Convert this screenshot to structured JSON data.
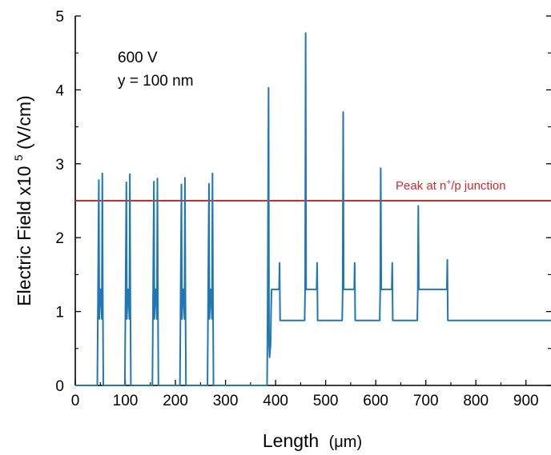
{
  "chart_data": {
    "type": "line",
    "title": "",
    "xlabel": "Length",
    "xlabel_unit": "(μm)",
    "ylabel_prefix": "Electric Field x10",
    "ylabel_exp": "5",
    "ylabel_unit": " (V/cm)",
    "xlim": [
      0,
      950
    ],
    "ylim": [
      0,
      5
    ],
    "xticks": [
      0,
      100,
      200,
      300,
      400,
      500,
      600,
      700,
      800,
      900
    ],
    "yticks": [
      0,
      1,
      2,
      3,
      4,
      5
    ],
    "grid": false,
    "legend": "none",
    "annotations": {
      "voltage": "600 V",
      "position": "y = 100 nm"
    },
    "reference_line": {
      "y": 2.5,
      "label_prefix": "Peak at n",
      "label_sup": "+",
      "label_suffix": "/p junction",
      "color": "#d42a2a"
    },
    "series": [
      {
        "color": "#1f77b4",
        "x": [
          0,
          44,
          45,
          47,
          48,
          50,
          51,
          53,
          54,
          55,
          56,
          57,
          99,
          100,
          102,
          103,
          105,
          106,
          108,
          109,
          110,
          111,
          112,
          154,
          155,
          157,
          158,
          160,
          161,
          163,
          164,
          165,
          166,
          167,
          209,
          210,
          212,
          213,
          215,
          216,
          218,
          219,
          220,
          221,
          222,
          264,
          265,
          267,
          268,
          270,
          271,
          273,
          274,
          275,
          276,
          277,
          383,
          384,
          386,
          387,
          388,
          390,
          391,
          392,
          395,
          397,
          405,
          407,
          408,
          409,
          410,
          458,
          459,
          460,
          461,
          462,
          465,
          480,
          482,
          483,
          484,
          485,
          487,
          533,
          534,
          535,
          536,
          537,
          540,
          555,
          557,
          558,
          559,
          560,
          562,
          608,
          609,
          610,
          611,
          612,
          615,
          630,
          632,
          633,
          634,
          635,
          637,
          683,
          684,
          685,
          686,
          687,
          690,
          740,
          742,
          743,
          744,
          745,
          747,
          950
        ],
        "y": [
          0,
          0,
          0.9,
          2.78,
          0.9,
          1.3,
          1.3,
          0.9,
          2.87,
          1.15,
          0,
          0,
          0,
          0.9,
          2.75,
          0.9,
          1.3,
          1.3,
          0.9,
          2.86,
          1.15,
          0,
          0,
          0,
          0.9,
          2.76,
          0.9,
          1.3,
          1.3,
          0.9,
          2.8,
          1.15,
          0,
          0,
          0,
          0.9,
          2.72,
          0.9,
          1.3,
          1.3,
          0.9,
          2.81,
          1.15,
          0,
          0,
          0,
          0.9,
          2.73,
          0.9,
          1.3,
          1.3,
          0.9,
          2.87,
          1.15,
          0,
          0,
          0,
          0.9,
          4.03,
          0.55,
          0.38,
          0.55,
          1.0,
          1.3,
          1.3,
          1.3,
          1.3,
          1.3,
          1.66,
          0.88,
          0.88,
          0.88,
          1.3,
          4.77,
          1.3,
          1.3,
          1.3,
          1.3,
          1.3,
          1.66,
          0.88,
          0.88,
          0.88,
          0.88,
          1.3,
          3.7,
          1.3,
          1.3,
          1.3,
          1.3,
          1.3,
          1.66,
          0.88,
          0.88,
          0.88,
          0.88,
          1.3,
          2.94,
          1.3,
          1.3,
          1.3,
          1.3,
          1.3,
          1.66,
          0.88,
          0.88,
          0.88,
          0.88,
          1.3,
          2.43,
          1.3,
          1.3,
          1.3,
          1.3,
          1.3,
          1.7,
          0.88,
          0.88,
          0.88,
          0.88
        ]
      }
    ]
  }
}
